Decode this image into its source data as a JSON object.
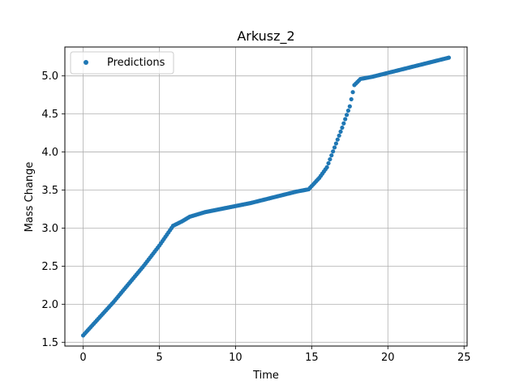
{
  "chart_data": {
    "type": "scatter",
    "title": "Arkusz_2",
    "xlabel": "Time",
    "ylabel": "Mass Change",
    "xlim": [
      -1.2,
      25.2
    ],
    "ylim": [
      1.45,
      5.38
    ],
    "xticks": [
      0,
      5,
      10,
      15,
      20,
      25
    ],
    "yticks": [
      1.5,
      2.0,
      2.5,
      3.0,
      3.5,
      4.0,
      4.5,
      5.0
    ],
    "xtick_labels": [
      "0",
      "5",
      "10",
      "15",
      "20",
      "25"
    ],
    "ytick_labels": [
      "1.5",
      "2.0",
      "2.5",
      "3.0",
      "3.5",
      "4.0",
      "4.5",
      "5.0"
    ],
    "grid": true,
    "legend_position": "top-left",
    "series": [
      {
        "name": "Predictions",
        "color": "#1f77b4",
        "marker": "circle",
        "anchor_points": [
          [
            0.0,
            1.59
          ],
          [
            1.0,
            1.81
          ],
          [
            2.0,
            2.03
          ],
          [
            3.0,
            2.27
          ],
          [
            4.0,
            2.51
          ],
          [
            5.0,
            2.77
          ],
          [
            5.9,
            3.03
          ],
          [
            6.5,
            3.09
          ],
          [
            7.0,
            3.15
          ],
          [
            8.0,
            3.21
          ],
          [
            9.0,
            3.25
          ],
          [
            10.0,
            3.29
          ],
          [
            11.0,
            3.33
          ],
          [
            12.0,
            3.38
          ],
          [
            13.0,
            3.43
          ],
          [
            14.0,
            3.48
          ],
          [
            14.8,
            3.51
          ],
          [
            15.5,
            3.66
          ],
          [
            16.0,
            3.8
          ],
          [
            16.5,
            4.06
          ],
          [
            17.0,
            4.32
          ],
          [
            17.5,
            4.6
          ],
          [
            17.8,
            4.88
          ],
          [
            18.2,
            4.96
          ],
          [
            19.0,
            4.99
          ],
          [
            20.0,
            5.04
          ],
          [
            21.0,
            5.09
          ],
          [
            22.0,
            5.14
          ],
          [
            23.0,
            5.19
          ],
          [
            24.0,
            5.24
          ]
        ],
        "sample_step": 0.1
      }
    ]
  }
}
